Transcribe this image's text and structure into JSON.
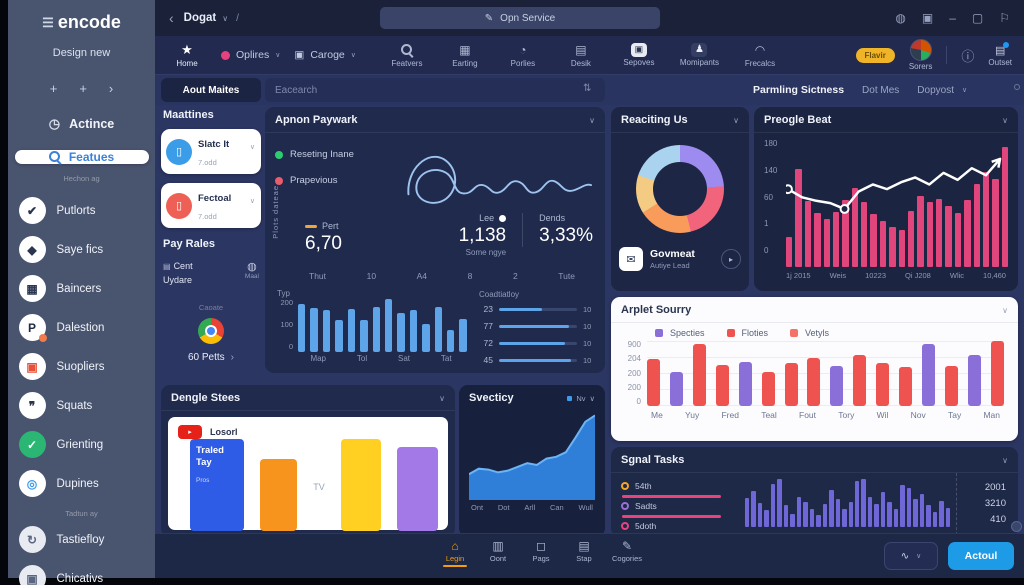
{
  "ui": {
    "caret": "∨",
    "chevron": "›"
  },
  "colors": {
    "accent_blue": "#2196f3",
    "bar_blue": "#5da5e8",
    "bar_pink": "#e0457b",
    "bar_purple": "#6f66d8",
    "badge_yellow": "#f0b429"
  },
  "sidebar": {
    "logo": {
      "icon": "☰",
      "text": "encode"
    },
    "subtitle": "Design new",
    "plus_row": [
      "+",
      "+",
      "›"
    ],
    "top_item": {
      "icon": "◷",
      "label": "Actince"
    },
    "search": {
      "label": "Featues"
    },
    "search_sub": "Hechon ag",
    "items": [
      {
        "glyph": "✔",
        "label": "Putlorts",
        "bg": "#ffffff",
        "fg": "#2b3550",
        "icon_name": "check-icon"
      },
      {
        "glyph": "◆",
        "label": "Saye fics",
        "bg": "#ffffff",
        "fg": "#2b3550",
        "icon_name": "flag-icon"
      },
      {
        "glyph": "▦",
        "label": "Baincers",
        "bg": "#ffffff",
        "fg": "#2b3550",
        "icon_name": "grid-icon"
      },
      {
        "glyph": "P",
        "label": "Dalestion",
        "bg": "#ffffff",
        "fg": "#1f2a44",
        "dot": "#f07b4d",
        "icon_name": "p-badge-icon"
      },
      {
        "glyph": "▣",
        "label": "Suopliers",
        "bg": "#ffffff",
        "fg": "#e8503a",
        "icon_name": "video-icon"
      },
      {
        "glyph": "❞",
        "label": "Squats",
        "bg": "#ffffff",
        "fg": "#2b3550",
        "icon_name": "quote-icon"
      },
      {
        "glyph": "✓",
        "label": "Grienting",
        "bg": "#2bb673",
        "fg": "#ffffff",
        "icon_name": "check-circle-icon"
      },
      {
        "glyph": "◎",
        "label": "Dupines",
        "bg": "#ffffff",
        "fg": "#3d9be9",
        "icon_name": "target-icon"
      },
      {
        "type": "section",
        "label": "Tadtun ay"
      },
      {
        "glyph": "↻",
        "label": "Tastiefloy",
        "bg": "#e8ebf2",
        "fg": "#5a6680",
        "icon_name": "refresh-icon"
      },
      {
        "glyph": "▣",
        "label": "Chicativs",
        "bg": "#e8ebf2",
        "fg": "#5a6680",
        "icon_name": "box-icon"
      }
    ]
  },
  "topbar": {
    "back": "‹",
    "breadcrumb": "Dogat",
    "caret": "∨",
    "slash": "/",
    "omnibox": {
      "icon": "✎",
      "label": "Opn Service"
    },
    "window_icons": [
      {
        "glyph": "◍",
        "name": "globe-icon"
      },
      {
        "glyph": "▣",
        "name": "camera-icon"
      },
      {
        "glyph": "‒",
        "name": "minimize-icon"
      },
      {
        "glyph": "▢",
        "name": "window-icon"
      },
      {
        "glyph": "⚐",
        "name": "flag-icon"
      }
    ]
  },
  "toolbar": {
    "home": {
      "glyph": "★",
      "label": "Home"
    },
    "menus": [
      {
        "dot": "#e8417e",
        "label": "Oplires",
        "caret": "∨",
        "icon_name": "pink-dot-icon"
      },
      {
        "glyph": "▣",
        "label": "Caroge",
        "caret": "∨",
        "icon_name": "package-icon"
      }
    ],
    "nav": [
      {
        "search": true,
        "label": "Featvers",
        "icon_name": "search-icon"
      },
      {
        "glyph": "▦",
        "label": "Earting",
        "icon_name": "calendar-icon"
      },
      {
        "glyph": "◔",
        "label": "Porlies",
        "icon_name": "globe-icon"
      },
      {
        "glyph": "▤",
        "label": "Desik",
        "icon_name": "grid-icon"
      },
      {
        "glyph": "▣",
        "label": "Sepoves",
        "icon_name": "lock-icon",
        "boxed": "light"
      },
      {
        "glyph": "♟",
        "label": "Momipants",
        "icon_name": "person-icon",
        "boxed": "dark"
      },
      {
        "glyph": "◠",
        "label": "Frecalcs",
        "icon_name": "headset-icon"
      }
    ],
    "badge": "Flavir",
    "user_label": "Sorers",
    "info_icon": "ⓘ",
    "outset": {
      "glyph": "▤",
      "label": "Outset"
    }
  },
  "filterbar": {
    "tab": "Aout Maites",
    "search_placeholder": "Eacearch",
    "sort_icon": "⇅",
    "right_title": "Parmling Sictness",
    "right_links": [
      "Dot Mes",
      "Dopyost"
    ]
  },
  "panels": {
    "maattines": {
      "title": "Maattines",
      "cards": [
        {
          "label": "Slatc It",
          "sub": "7.odd",
          "color": "#3b9de8",
          "glyph": "▯"
        },
        {
          "label": "Fectoal",
          "sub": "7.odd",
          "color": "#ee6055",
          "glyph": "▯"
        }
      ],
      "pay_title": "Pay Rales",
      "cent_icon": "▤",
      "cent_line1": "Cent",
      "cent_line2": "Uydare",
      "bell_icon": "◍",
      "bell_label": "Maal",
      "caoate": "Caoate",
      "petts": "60 Petts"
    },
    "paywark": {
      "title": "Apnon Paywark",
      "legend": [
        {
          "label": "Reseting Inane",
          "color": "#2ecc71"
        },
        {
          "label": "Prapevious",
          "color": "#e85c6c"
        }
      ],
      "ylabel": "Plots dateae",
      "stats": {
        "pert_label": "Pert",
        "pert_value": "6,70",
        "lee_label": "Lee",
        "lee_value": "1,138",
        "lee_sub": "Some ngye",
        "dends_label": "Dends",
        "dends_value": "3,33%"
      },
      "axis_ticks": [
        "Thut",
        "10",
        "A4",
        "8",
        "2",
        "Tute"
      ],
      "bars": {
        "label": "Typ",
        "yticks": [
          "200",
          "100",
          "0"
        ],
        "xlabels": [
          "Map",
          "Tol",
          "Sat",
          "Tat"
        ],
        "values": [
          195,
          180,
          170,
          130,
          175,
          130,
          185,
          215,
          160,
          170,
          115,
          185,
          90,
          135
        ],
        "max": 220,
        "color": "#5da5e8"
      },
      "coad": {
        "title": "Coadtiatloy",
        "rows": [
          {
            "left": "23",
            "pct": 55,
            "right": "10"
          },
          {
            "left": "77",
            "pct": 90,
            "right": "10"
          },
          {
            "left": "72",
            "pct": 85,
            "right": "10"
          },
          {
            "left": "45",
            "pct": 92,
            "right": "10"
          }
        ]
      }
    },
    "reaciting": {
      "title": "Reaciting Us",
      "donut": [
        {
          "color": "#9d8bf0",
          "pct": 24
        },
        {
          "color": "#f2647c",
          "pct": 22
        },
        {
          "color": "#f89b5b",
          "pct": 20
        },
        {
          "color": "#f3cb83",
          "pct": 14
        },
        {
          "color": "#a9d3ee",
          "pct": 20
        }
      ],
      "footer": {
        "icon": "✉",
        "title": "Govmeat",
        "sub": "Autiye Lead",
        "button": "▸"
      }
    },
    "preogle": {
      "title": "Preogle Beat",
      "yticks": [
        "180",
        "140",
        "60",
        "1",
        "0"
      ],
      "xlabels": [
        "1j 2015",
        "Weis",
        "10223",
        "Qi J208",
        "Wlic",
        "10,460"
      ],
      "bars": {
        "values": [
          25,
          82,
          55,
          45,
          40,
          46,
          56,
          66,
          54,
          44,
          38,
          33,
          31,
          47,
          59,
          54,
          57,
          51,
          45,
          56,
          69,
          79,
          73,
          100
        ],
        "max": 100,
        "color": "#e0457b"
      },
      "line": {
        "values": [
          62,
          55,
          52,
          50,
          45,
          60,
          66,
          62,
          68,
          72,
          66,
          76,
          70,
          80,
          74,
          88
        ],
        "markers": [
          0,
          4
        ]
      }
    },
    "arplet": {
      "title": "Arplet Sourry",
      "legend": [
        {
          "label": "Specties",
          "color": "#8a6fd8"
        },
        {
          "label": "Floties",
          "color": "#ef5350"
        },
        {
          "label": "Vetyls",
          "color": "#f4726a"
        }
      ],
      "yticks": [
        "900",
        "204",
        "200",
        "200",
        "0"
      ],
      "xlabels": [
        "Me",
        "Yuy",
        "Fred",
        "Teal",
        "Fout",
        "Tory",
        "Wil",
        "Nov",
        "Tay",
        "Man"
      ],
      "values": [
        640,
        470,
        840,
        560,
        600,
        460,
        590,
        660,
        550,
        700,
        590,
        530,
        840,
        540,
        700,
        880
      ],
      "kinds": [
        "r",
        "p",
        "r",
        "r",
        "p",
        "r",
        "r",
        "r",
        "p",
        "r",
        "r",
        "r",
        "p",
        "r",
        "p",
        "r"
      ],
      "kind_colors": {
        "r": "#ef5350",
        "p": "#8a6fd8"
      },
      "max": 900
    },
    "sgnal": {
      "title": "Sgnal Tasks",
      "legend": [
        {
          "label": "54th",
          "color": "#f5a623",
          "bar": true
        },
        {
          "label": "Sadts",
          "color": "#9b6fd6",
          "bar": true
        },
        {
          "label": "5doth",
          "color": "#e8447c",
          "bar": false
        }
      ],
      "values": [
        "2001",
        "3210",
        "410"
      ],
      "bars": {
        "values": [
          60,
          75,
          50,
          35,
          90,
          100,
          45,
          28,
          62,
          52,
          38,
          25,
          48,
          78,
          58,
          38,
          52,
          95,
          100,
          62,
          48,
          72,
          52,
          38,
          88,
          82,
          58,
          68,
          45,
          32,
          55,
          40
        ],
        "max": 100,
        "color": "#6f66d8"
      }
    },
    "dengle": {
      "title": "Dengle Stees",
      "badge_icon": "▸",
      "badge": "Losorl",
      "tv": "TV",
      "blocks": [
        {
          "color": "#2e5ce6",
          "label": "Traled Tay",
          "sub": "Pros",
          "h": 92,
          "w": 62
        },
        {
          "color": "#f7941d",
          "h": 72,
          "w": 42
        },
        {
          "color": "#ffd021",
          "h": 92,
          "w": 46
        },
        {
          "color": "#a379e8",
          "h": 84,
          "w": 46
        }
      ]
    },
    "svecticy": {
      "title": "Svecticy",
      "dropdown": "Nv",
      "xlabels": [
        "Ont",
        "Dot",
        "Arll",
        "Can",
        "Wull"
      ],
      "area": {
        "values": [
          28,
          34,
          33,
          30,
          32,
          36,
          40,
          38,
          45,
          47,
          52,
          68,
          85,
          92
        ],
        "fill": "#2f7fd8",
        "stroke": "#6db4f5"
      }
    }
  },
  "bottombar": {
    "items": [
      {
        "glyph": "⌂",
        "label": "Legin",
        "active": true,
        "icon_name": "home-icon"
      },
      {
        "glyph": "▥",
        "label": "Oont",
        "icon_name": "columns-icon"
      },
      {
        "glyph": "◻",
        "label": "Pags",
        "icon_name": "chat-icon"
      },
      {
        "glyph": "▤",
        "label": "Stap",
        "icon_name": "document-icon"
      },
      {
        "glyph": "✎",
        "label": "Cogories",
        "icon_name": "pen-icon"
      }
    ],
    "filter": {
      "glyph": "∿",
      "caret": "∨"
    },
    "action": "Actoul"
  }
}
